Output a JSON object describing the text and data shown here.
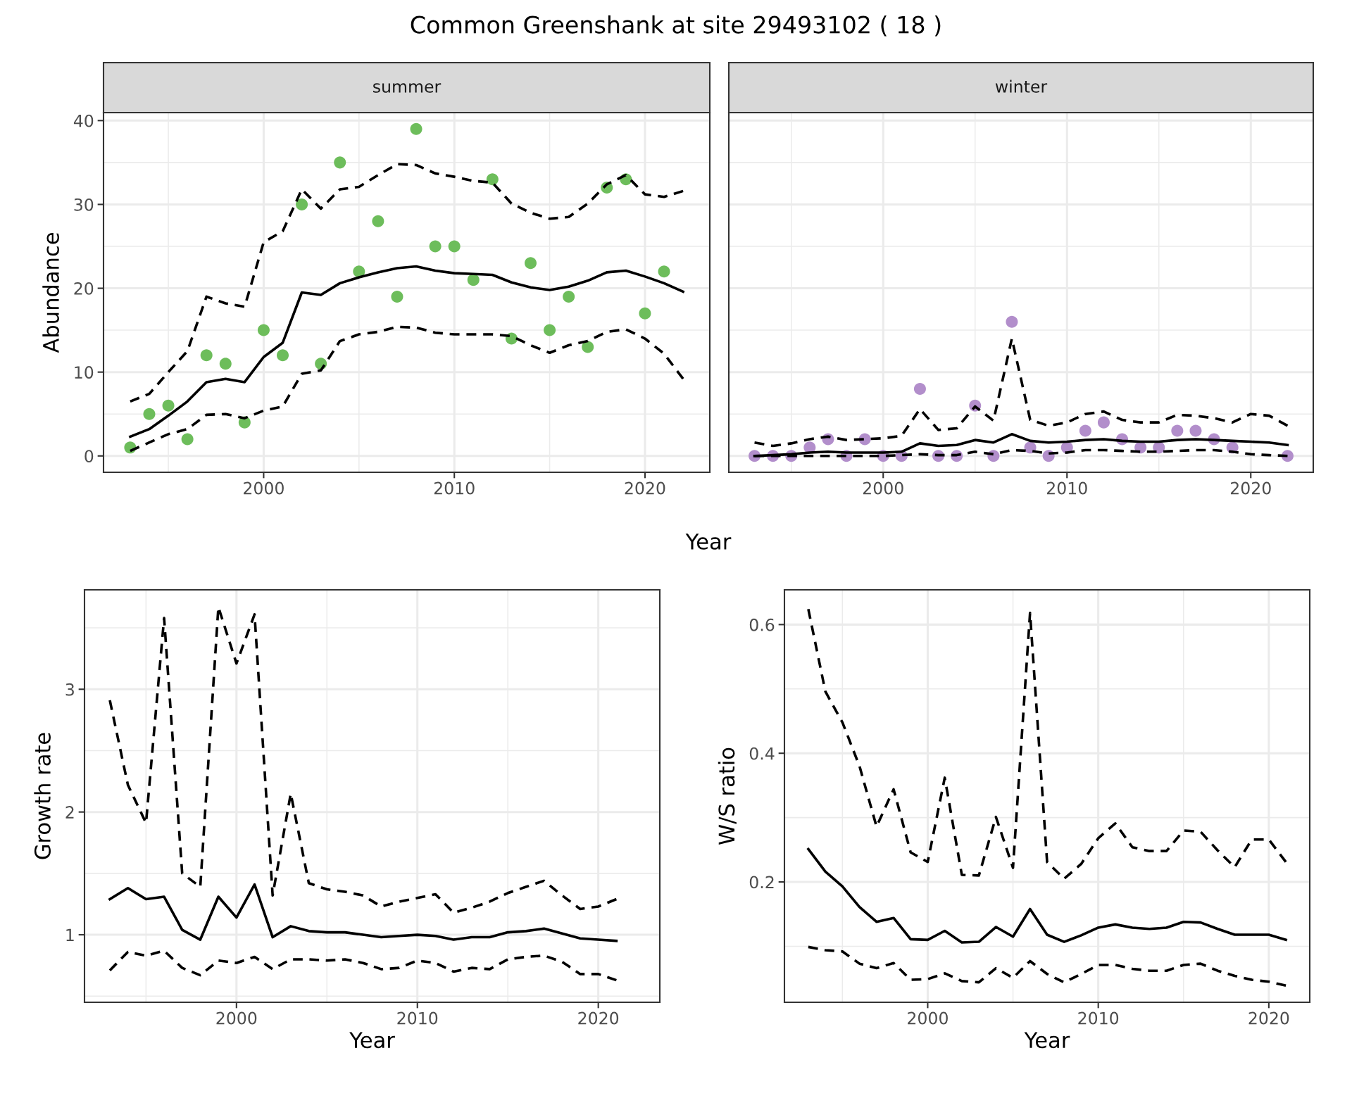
{
  "chart_data": [
    {
      "type": "line",
      "title": "Common Greenshank at site 29493102 ( 18 )",
      "subtitle": "summer",
      "xlabel": "Year",
      "ylabel": "Abundance",
      "x": [
        1993,
        1994,
        1995,
        1996,
        1997,
        1998,
        1999,
        2000,
        2001,
        2002,
        2003,
        2004,
        2005,
        2006,
        2007,
        2008,
        2009,
        2010,
        2011,
        2012,
        2013,
        2014,
        2015,
        2016,
        2017,
        2018,
        2019,
        2020,
        2021,
        2022
      ],
      "series": [
        {
          "type": "line",
          "line_style": "dashed",
          "color": "#000000",
          "values": [
            6.5,
            7.4,
            10,
            12.5,
            19,
            18.2,
            17.8,
            25.5,
            26.8,
            31.8,
            29.5,
            31.8,
            32.1,
            33.5,
            34.8,
            34.7,
            33.7,
            33.3,
            32.8,
            32.6,
            30.1,
            29,
            28.3,
            28.5,
            30.1,
            32.4,
            33.5,
            31.2,
            30.9,
            31.6
          ]
        },
        {
          "type": "line",
          "line_style": "dashed",
          "color": "#000000",
          "values": [
            0.6,
            1.6,
            2.6,
            3.2,
            4.9,
            5,
            4.5,
            5.4,
            5.9,
            9.8,
            10.2,
            13.7,
            14.5,
            14.8,
            15.4,
            15.3,
            14.7,
            14.5,
            14.5,
            14.5,
            14.3,
            13.2,
            12.3,
            13.2,
            13.7,
            14.8,
            15.1,
            14,
            12.2,
            9.2
          ]
        },
        {
          "type": "line",
          "line_style": "solid",
          "color": "#000000",
          "values": [
            2.3,
            3.2,
            4.8,
            6.5,
            8.8,
            9.2,
            8.8,
            11.8,
            13.5,
            19.5,
            19.2,
            20.6,
            21.3,
            21.9,
            22.4,
            22.6,
            22.1,
            21.8,
            21.7,
            21.6,
            20.7,
            20.1,
            19.8,
            20.2,
            20.9,
            21.9,
            22.1,
            21.4,
            20.6,
            19.6
          ]
        },
        {
          "type": "scatter",
          "marker": "circle",
          "color": "#6dbd5b",
          "values": [
            1,
            5,
            6,
            2,
            12,
            11,
            4,
            15,
            12,
            30,
            11,
            35,
            22,
            28,
            19,
            39,
            25,
            25,
            21,
            33,
            14,
            23,
            15,
            19,
            13,
            32,
            33,
            17,
            22,
            null
          ]
        }
      ],
      "xlim": [
        1991.6,
        2023.4
      ],
      "ylim": [
        -1.95,
        40.95
      ],
      "xticks": [
        2000,
        2010,
        2020
      ],
      "yticks": [
        0,
        10,
        20,
        30,
        40
      ],
      "grid": true
    },
    {
      "type": "line",
      "subtitle": "winter",
      "x": [
        1993,
        1994,
        1995,
        1996,
        1997,
        1998,
        1999,
        2000,
        2001,
        2002,
        2003,
        2004,
        2005,
        2006,
        2007,
        2008,
        2009,
        2010,
        2011,
        2012,
        2013,
        2014,
        2015,
        2016,
        2017,
        2018,
        2019,
        2020,
        2021,
        2022
      ],
      "series": [
        {
          "type": "line",
          "line_style": "dashed",
          "color": "#000000",
          "values": [
            1.6,
            1.2,
            1.5,
            2,
            2.3,
            1.9,
            2,
            2.1,
            2.4,
            5.6,
            3.1,
            3.3,
            5.9,
            4.2,
            14,
            4.3,
            3.6,
            4,
            5,
            5.3,
            4.3,
            4,
            4,
            4.9,
            4.8,
            4.5,
            4,
            5,
            4.8,
            3.6
          ]
        },
        {
          "type": "line",
          "line_style": "dashed",
          "color": "#000000",
          "values": [
            0,
            0,
            0,
            0,
            0,
            0,
            0,
            0,
            0.1,
            0.2,
            0.1,
            0.1,
            0.5,
            0.2,
            0.7,
            0.6,
            0.3,
            0.4,
            0.7,
            0.7,
            0.6,
            0.5,
            0.5,
            0.6,
            0.7,
            0.7,
            0.5,
            0.2,
            0.1,
            0
          ]
        },
        {
          "type": "line",
          "line_style": "solid",
          "color": "#000000",
          "values": [
            0,
            0.1,
            0.2,
            0.4,
            0.5,
            0.4,
            0.4,
            0.4,
            0.5,
            1.5,
            1.2,
            1.3,
            1.9,
            1.6,
            2.6,
            1.8,
            1.6,
            1.7,
            1.9,
            2,
            1.8,
            1.7,
            1.7,
            1.9,
            2,
            1.9,
            1.8,
            1.7,
            1.6,
            1.3
          ]
        },
        {
          "type": "scatter",
          "marker": "circle",
          "color": "#b28ecb",
          "values": [
            0,
            0,
            0,
            1,
            2,
            0,
            2,
            0,
            0,
            8,
            0,
            0,
            6,
            0,
            16,
            1,
            0,
            1,
            3,
            4,
            2,
            1,
            1,
            3,
            3,
            2,
            1,
            null,
            null,
            0
          ]
        }
      ],
      "xlim": [
        1991.6,
        2023.4
      ],
      "ylim": [
        -1.95,
        40.95
      ],
      "xticks": [
        2000,
        2010,
        2020
      ],
      "yticks": [
        0,
        10,
        20,
        30,
        40
      ],
      "grid": true,
      "tick_labels": "x"
    },
    {
      "type": "line",
      "xlabel": "Year",
      "ylabel": "Growth rate",
      "x": [
        1993,
        1994,
        1995,
        1996,
        1997,
        1998,
        1999,
        2000,
        2001,
        2002,
        2003,
        2004,
        2005,
        2006,
        2007,
        2008,
        2009,
        2010,
        2011,
        2012,
        2013,
        2014,
        2015,
        2016,
        2017,
        2018,
        2019,
        2020,
        2021
      ],
      "series": [
        {
          "type": "line",
          "line_style": "dashed",
          "color": "#000000",
          "values": [
            2.91,
            2.22,
            1.91,
            3.58,
            1.5,
            1.39,
            3.67,
            3.21,
            3.61,
            1.32,
            2.15,
            1.42,
            1.37,
            1.35,
            1.32,
            1.23,
            1.27,
            1.3,
            1.33,
            1.18,
            1.22,
            1.27,
            1.34,
            1.39,
            1.44,
            1.32,
            1.21,
            1.23,
            1.29
          ]
        },
        {
          "type": "line",
          "line_style": "dashed",
          "color": "#000000",
          "values": [
            0.71,
            0.86,
            0.83,
            0.87,
            0.73,
            0.67,
            0.79,
            0.77,
            0.82,
            0.72,
            0.8,
            0.8,
            0.79,
            0.8,
            0.77,
            0.72,
            0.73,
            0.79,
            0.77,
            0.7,
            0.73,
            0.72,
            0.8,
            0.82,
            0.83,
            0.78,
            0.68,
            0.68,
            0.63
          ]
        },
        {
          "type": "line",
          "line_style": "solid",
          "color": "#000000",
          "values": [
            1.29,
            1.38,
            1.29,
            1.31,
            1.04,
            0.96,
            1.31,
            1.14,
            1.41,
            0.98,
            1.07,
            1.03,
            1.02,
            1.02,
            1,
            0.98,
            0.99,
            1,
            0.99,
            0.96,
            0.98,
            0.98,
            1.02,
            1.03,
            1.05,
            1.01,
            0.97,
            0.96,
            0.95
          ]
        }
      ],
      "xlim": [
        1991.6,
        2023.4
      ],
      "ylim": [
        0.45,
        3.81
      ],
      "xticks": [
        2000,
        2010,
        2020
      ],
      "yticks": [
        1,
        2,
        3
      ],
      "grid": true
    },
    {
      "type": "line",
      "xlabel": "Year",
      "ylabel": "W/S ratio",
      "x": [
        1993,
        1994,
        1995,
        1996,
        1997,
        1998,
        1999,
        2000,
        2001,
        2002,
        2003,
        2004,
        2005,
        2006,
        2007,
        2008,
        2009,
        2010,
        2011,
        2012,
        2013,
        2014,
        2015,
        2016,
        2017,
        2018,
        2019,
        2020,
        2021
      ],
      "series": [
        {
          "type": "line",
          "line_style": "dashed",
          "color": "#000000",
          "values": [
            0.624,
            0.496,
            0.448,
            0.38,
            0.286,
            0.344,
            0.246,
            0.231,
            0.362,
            0.211,
            0.21,
            0.301,
            0.222,
            0.618,
            0.231,
            0.205,
            0.228,
            0.268,
            0.291,
            0.254,
            0.248,
            0.248,
            0.28,
            0.278,
            0.249,
            0.223,
            0.266,
            0.266,
            0.231
          ]
        },
        {
          "type": "line",
          "line_style": "dashed",
          "color": "#000000",
          "values": [
            0.099,
            0.094,
            0.092,
            0.073,
            0.066,
            0.074,
            0.048,
            0.049,
            0.058,
            0.046,
            0.044,
            0.066,
            0.051,
            0.077,
            0.057,
            0.044,
            0.057,
            0.071,
            0.071,
            0.065,
            0.062,
            0.062,
            0.071,
            0.073,
            0.062,
            0.054,
            0.048,
            0.045,
            0.039
          ]
        },
        {
          "type": "line",
          "line_style": "solid",
          "color": "#000000",
          "values": [
            0.251,
            0.216,
            0.193,
            0.161,
            0.138,
            0.144,
            0.111,
            0.11,
            0.124,
            0.106,
            0.107,
            0.13,
            0.115,
            0.158,
            0.118,
            0.107,
            0.117,
            0.129,
            0.134,
            0.129,
            0.127,
            0.129,
            0.138,
            0.137,
            0.127,
            0.118,
            0.118,
            0.118,
            0.11
          ]
        }
      ],
      "xlim": [
        1991.6,
        2022.4
      ],
      "ylim": [
        0.013,
        0.654
      ],
      "xticks": [
        2000,
        2010,
        2020
      ],
      "yticks": [
        0.2,
        0.4,
        0.6
      ],
      "grid": true
    }
  ]
}
